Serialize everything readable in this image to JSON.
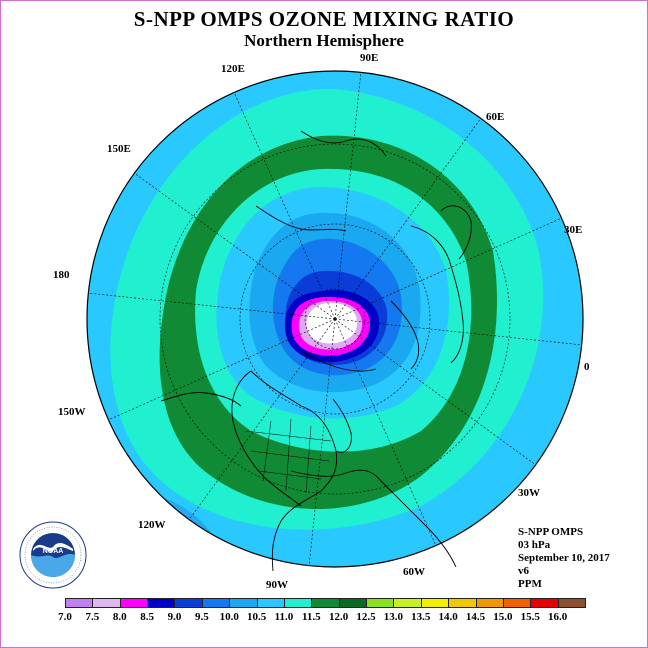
{
  "header": {
    "title": "S-NPP OMPS OZONE MIXING RATIO",
    "subtitle": "Northern Hemisphere"
  },
  "map": {
    "projection": "north polar stereographic",
    "longitude_labels": [
      "90E",
      "60E",
      "30E",
      "0",
      "30W",
      "60W",
      "90W",
      "120W",
      "150W",
      "180",
      "150E",
      "120E"
    ],
    "bands": [
      {
        "range": "10.5-11.0",
        "color": "#29c8ff"
      },
      {
        "range": "11.0-11.5",
        "color": "#20f0d0"
      },
      {
        "range": "11.5-12.0",
        "color": "#118a35"
      },
      {
        "range": "10.0-10.5",
        "color": "#1aa8f0"
      },
      {
        "range": "9.5-10.0",
        "color": "#1478f0"
      },
      {
        "range": "9.0-9.5",
        "color": "#0a3cd8"
      },
      {
        "range": "8.5-9.0",
        "color": "#0000c8"
      },
      {
        "range": "8.0-8.5",
        "color": "#ff00ff"
      },
      {
        "range": "7.5-8.0",
        "color": "#e0a8f0"
      },
      {
        "range": "<7.0",
        "color": "#ffffff"
      }
    ]
  },
  "info": {
    "instrument": "S-NPP OMPS",
    "level": "03 hPa",
    "date": "September 10, 2017",
    "version": "v6",
    "units": "PPM"
  },
  "legend": {
    "ticks": [
      "7.0",
      "7.5",
      "8.0",
      "8.5",
      "9.0",
      "9.5",
      "10.0",
      "10.5",
      "11.0",
      "11.5",
      "12.0",
      "12.5",
      "13.0",
      "13.5",
      "14.0",
      "14.5",
      "15.0",
      "15.5",
      "16.0"
    ],
    "colors": [
      "#c080f0",
      "#e0b8f0",
      "#ff00ff",
      "#0000c8",
      "#0a3cd8",
      "#1478f0",
      "#1aa8f0",
      "#29c8ff",
      "#20f0d0",
      "#118a35",
      "#0a6a25",
      "#8ce020",
      "#c8f020",
      "#f0f000",
      "#f0c800",
      "#f09800",
      "#f06000",
      "#e80000",
      "#8a5030"
    ]
  },
  "logo": {
    "name": "NOAA",
    "ring_text": "NATIONAL OCEANIC AND ATMOSPHERIC ADMINISTRATION · U.S. DEPARTMENT OF COMMERCE"
  }
}
